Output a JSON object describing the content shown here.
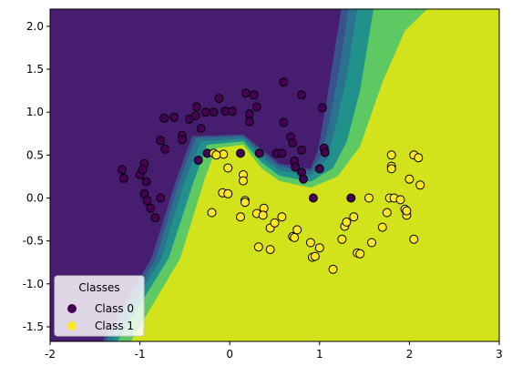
{
  "chart_data": {
    "type": "scatter",
    "title": "",
    "xlabel": "",
    "ylabel": "",
    "xlim": [
      -2.0,
      3.0
    ],
    "ylim": [
      -1.67,
      2.2
    ],
    "xticks": [
      "-2",
      "-1",
      "0",
      "1",
      "2",
      "3"
    ],
    "xtick_values": [
      -2,
      -1,
      0,
      1,
      2,
      3
    ],
    "yticks": [
      "2.0",
      "1.5",
      "1.0",
      "0.5",
      "0.0",
      "-0.5",
      "-1.0",
      "-1.5"
    ],
    "ytick_values": [
      2.0,
      1.5,
      1.0,
      0.5,
      0.0,
      -0.5,
      -1.0,
      -1.5
    ],
    "grid": false,
    "background": "decision-regions",
    "region_colors": {
      "class0": "#471d6f",
      "class0_edge": "#3a528b",
      "mid_dark": "#2b728e",
      "mid": "#21918c",
      "mid_light": "#5ec962",
      "class1": "#d2e21b"
    },
    "legend": {
      "title": "Classes",
      "placement": "lower-left",
      "entries": [
        {
          "label": "Class 0",
          "color": "#440154"
        },
        {
          "label": "Class 1",
          "color": "#fde725"
        }
      ]
    },
    "series": [
      {
        "name": "Class 0",
        "color": "#440154",
        "points": [
          [
            -1.2,
            0.33
          ],
          [
            -1.18,
            0.23
          ],
          [
            -1.0,
            0.27
          ],
          [
            -0.95,
            0.4
          ],
          [
            -0.97,
            0.33
          ],
          [
            -0.93,
            0.19
          ],
          [
            -0.95,
            0.05
          ],
          [
            -0.92,
            -0.03
          ],
          [
            -0.88,
            -0.12
          ],
          [
            -0.83,
            -0.23
          ],
          [
            -0.77,
            0.0
          ],
          [
            -0.77,
            0.67
          ],
          [
            -0.72,
            0.57
          ],
          [
            -0.73,
            0.93
          ],
          [
            -0.62,
            0.94
          ],
          [
            -0.53,
            0.73
          ],
          [
            -0.53,
            0.68
          ],
          [
            -0.45,
            0.92
          ],
          [
            -0.38,
            0.96
          ],
          [
            -0.37,
            1.06
          ],
          [
            -0.32,
            0.81
          ],
          [
            -0.27,
            1.0
          ],
          [
            -0.25,
            0.52
          ],
          [
            -0.18,
            1.0
          ],
          [
            -0.12,
            1.16
          ],
          [
            -0.05,
            1.01
          ],
          [
            0.03,
            1.01
          ],
          [
            0.12,
            0.52
          ],
          [
            0.18,
            1.22
          ],
          [
            0.22,
            0.98
          ],
          [
            0.27,
            1.2
          ],
          [
            0.22,
            0.89
          ],
          [
            0.3,
            1.06
          ],
          [
            0.33,
            0.52
          ],
          [
            0.52,
            0.52
          ],
          [
            0.58,
            0.52
          ],
          [
            0.6,
            1.35
          ],
          [
            0.6,
            0.88
          ],
          [
            0.68,
            0.71
          ],
          [
            0.7,
            0.64
          ],
          [
            0.72,
            0.43
          ],
          [
            0.73,
            0.36
          ],
          [
            0.8,
            0.56
          ],
          [
            0.8,
            0.3
          ],
          [
            0.82,
            0.22
          ],
          [
            0.8,
            1.2
          ],
          [
            0.93,
            0.0
          ],
          [
            1.0,
            0.34
          ],
          [
            1.03,
            1.05
          ],
          [
            1.05,
            0.58
          ],
          [
            1.06,
            0.53
          ],
          [
            1.35,
            0.0
          ],
          [
            -0.35,
            0.44
          ]
        ]
      },
      {
        "name": "Class 1",
        "color": "#fde725",
        "points": [
          [
            -0.18,
            0.52
          ],
          [
            -0.07,
            0.51
          ],
          [
            -0.2,
            -0.17
          ],
          [
            -0.08,
            0.06
          ],
          [
            -0.02,
            0.05
          ],
          [
            -0.02,
            0.35
          ],
          [
            -0.15,
            0.5
          ],
          [
            0.12,
            -0.22
          ],
          [
            0.15,
            0.27
          ],
          [
            0.15,
            0.2
          ],
          [
            0.17,
            -0.03
          ],
          [
            0.17,
            -0.05
          ],
          [
            0.3,
            -0.18
          ],
          [
            0.32,
            -0.57
          ],
          [
            0.38,
            -0.12
          ],
          [
            0.37,
            -0.2
          ],
          [
            0.45,
            -0.6
          ],
          [
            0.45,
            -0.35
          ],
          [
            0.5,
            -0.29
          ],
          [
            0.58,
            -0.22
          ],
          [
            0.7,
            -0.45
          ],
          [
            0.72,
            -0.46
          ],
          [
            0.75,
            -0.37
          ],
          [
            0.9,
            -0.52
          ],
          [
            0.92,
            -0.69
          ],
          [
            0.95,
            -0.68
          ],
          [
            1.0,
            -0.58
          ],
          [
            1.15,
            -0.83
          ],
          [
            1.25,
            -0.48
          ],
          [
            1.28,
            -0.33
          ],
          [
            1.3,
            -0.28
          ],
          [
            1.38,
            -0.22
          ],
          [
            1.42,
            -0.64
          ],
          [
            1.45,
            -0.65
          ],
          [
            1.55,
            0.0
          ],
          [
            1.58,
            -0.52
          ],
          [
            1.7,
            -0.34
          ],
          [
            1.75,
            -0.17
          ],
          [
            1.78,
            0.0
          ],
          [
            1.8,
            0.5
          ],
          [
            1.8,
            0.37
          ],
          [
            1.8,
            0.34
          ],
          [
            1.83,
            0.0
          ],
          [
            1.9,
            -0.02
          ],
          [
            1.95,
            -0.13
          ],
          [
            1.97,
            -0.2
          ],
          [
            2.0,
            0.22
          ],
          [
            2.05,
            0.5
          ],
          [
            2.1,
            0.47
          ],
          [
            2.12,
            0.15
          ],
          [
            2.05,
            -0.48
          ],
          [
            1.97,
            -0.15
          ]
        ]
      }
    ]
  }
}
